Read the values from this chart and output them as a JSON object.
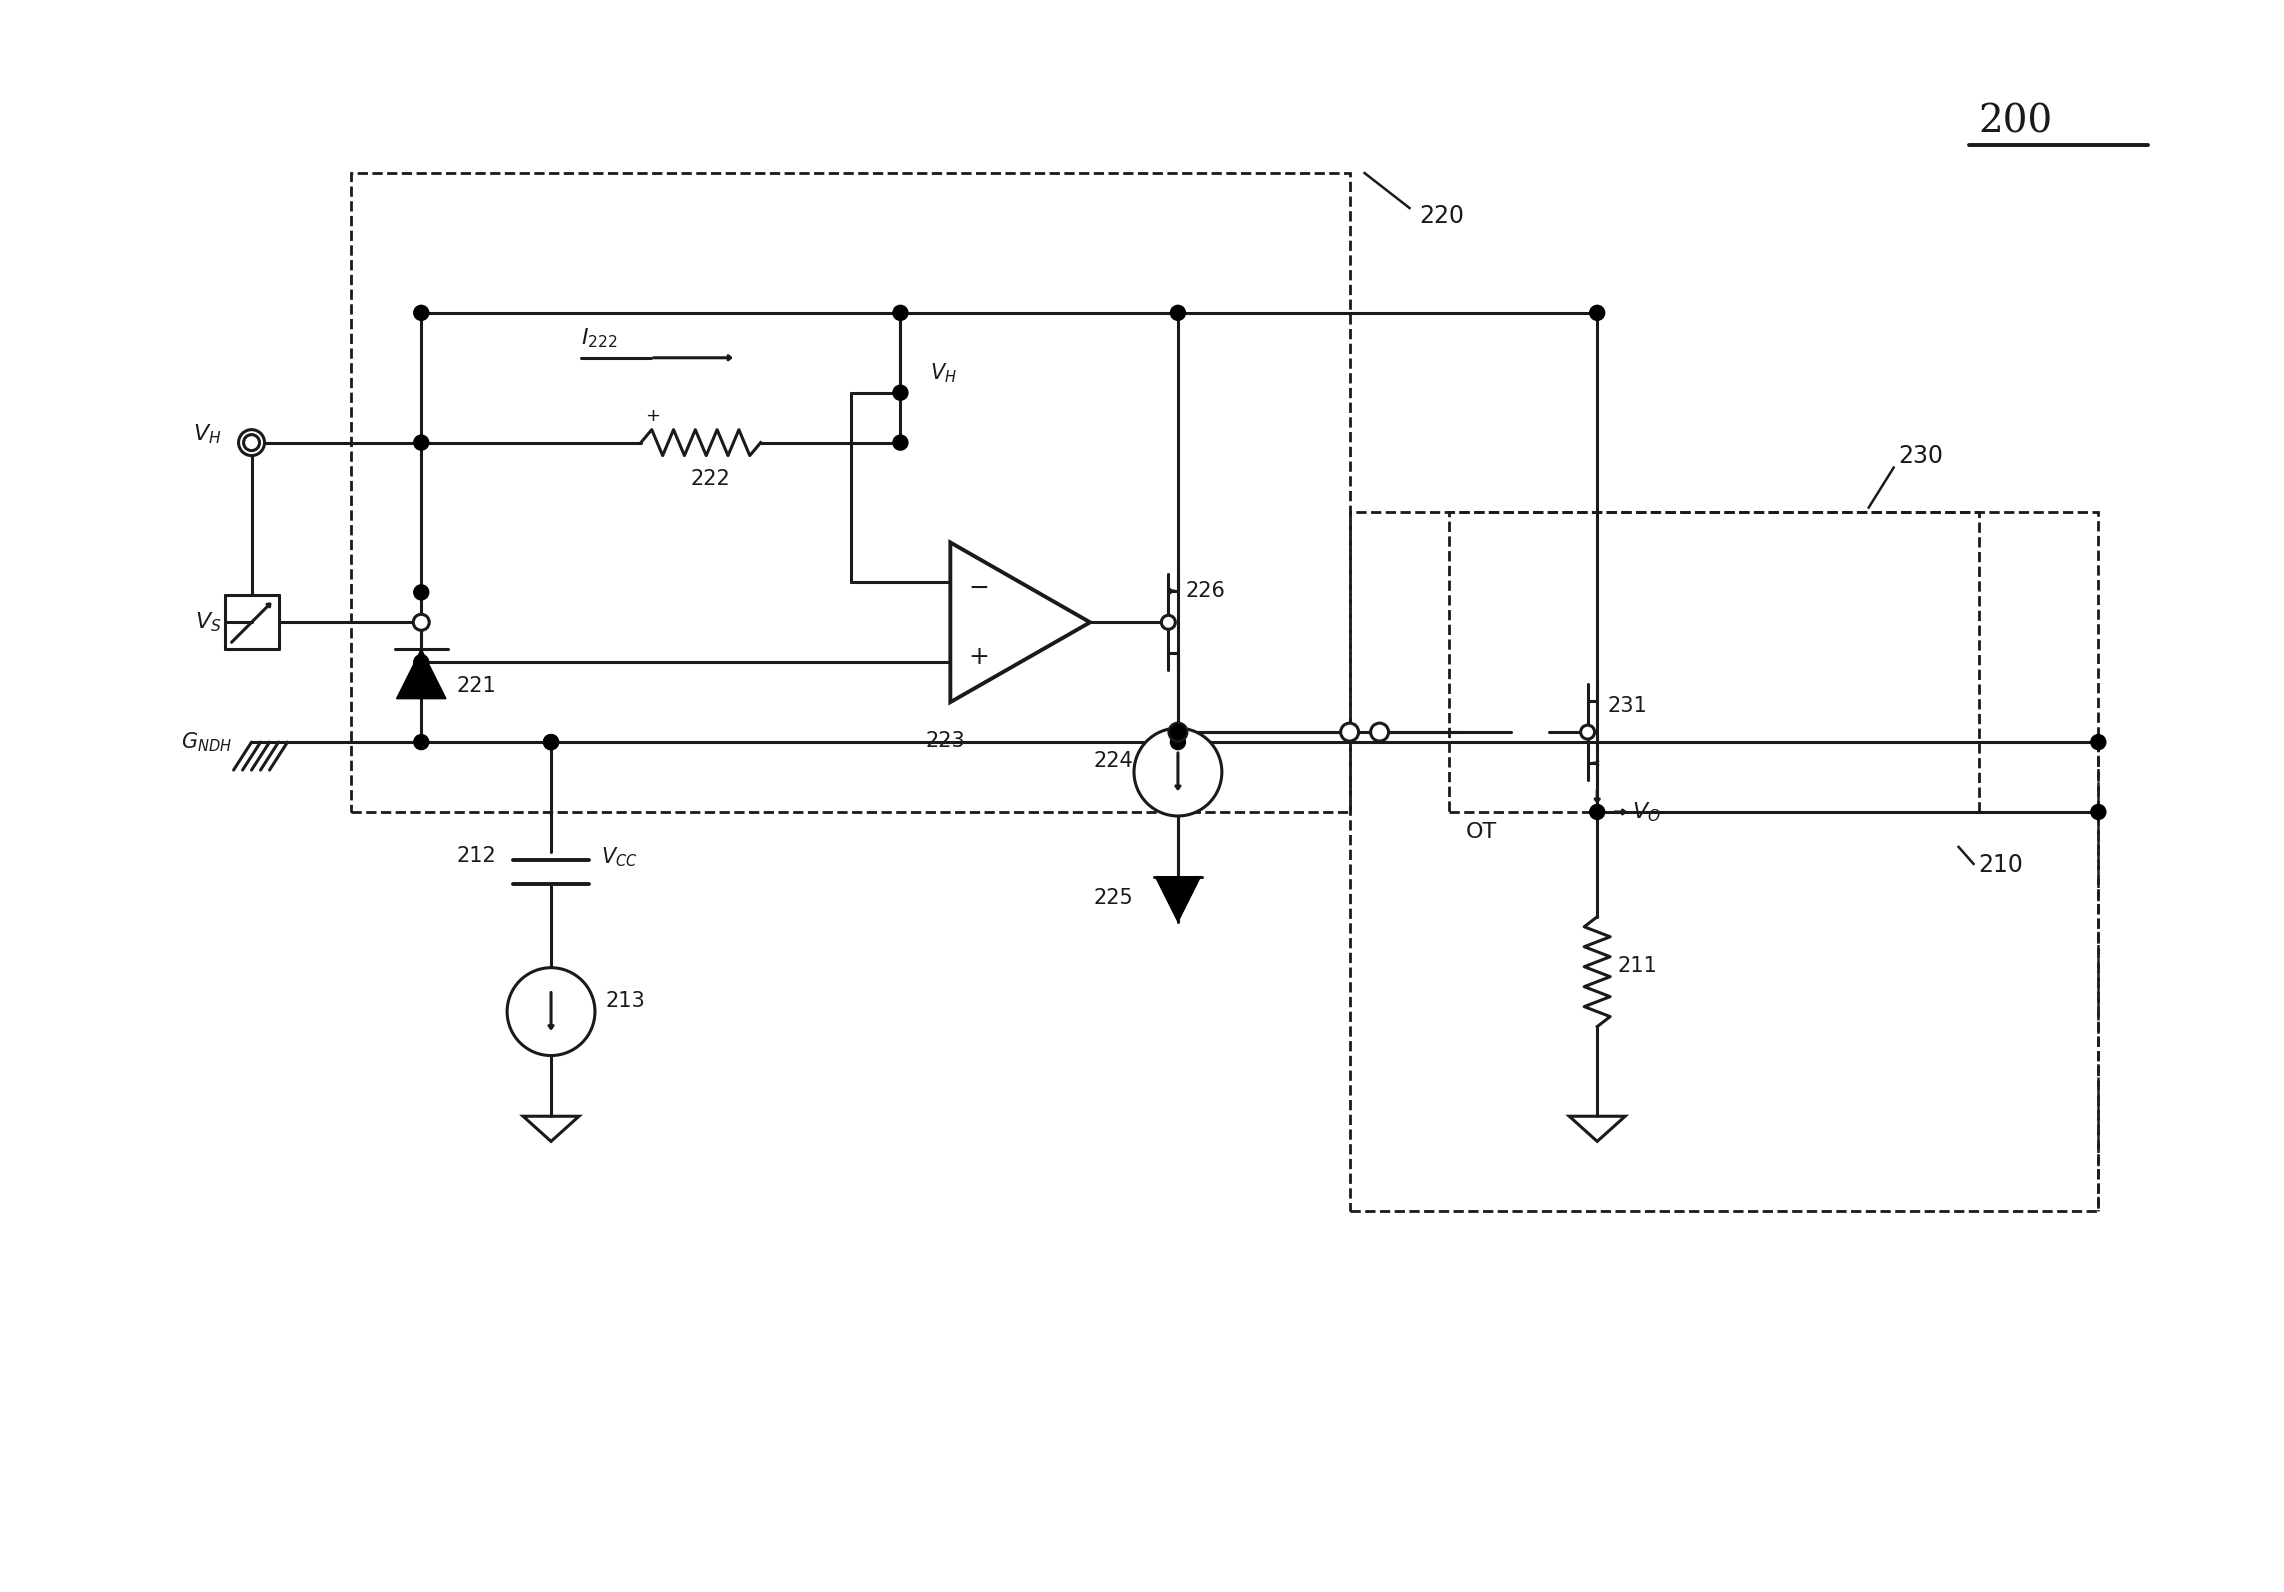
{
  "bg_color": "#ffffff",
  "line_color": "#1a1a1a",
  "label_200": "200",
  "label_210": "210",
  "label_220": "220",
  "label_230": "230",
  "label_211": "211",
  "label_212": "212",
  "label_213": "213",
  "label_221": "221",
  "label_222": "222",
  "label_223": "223",
  "label_224": "224",
  "label_225": "225",
  "label_226": "226",
  "label_231": "231"
}
